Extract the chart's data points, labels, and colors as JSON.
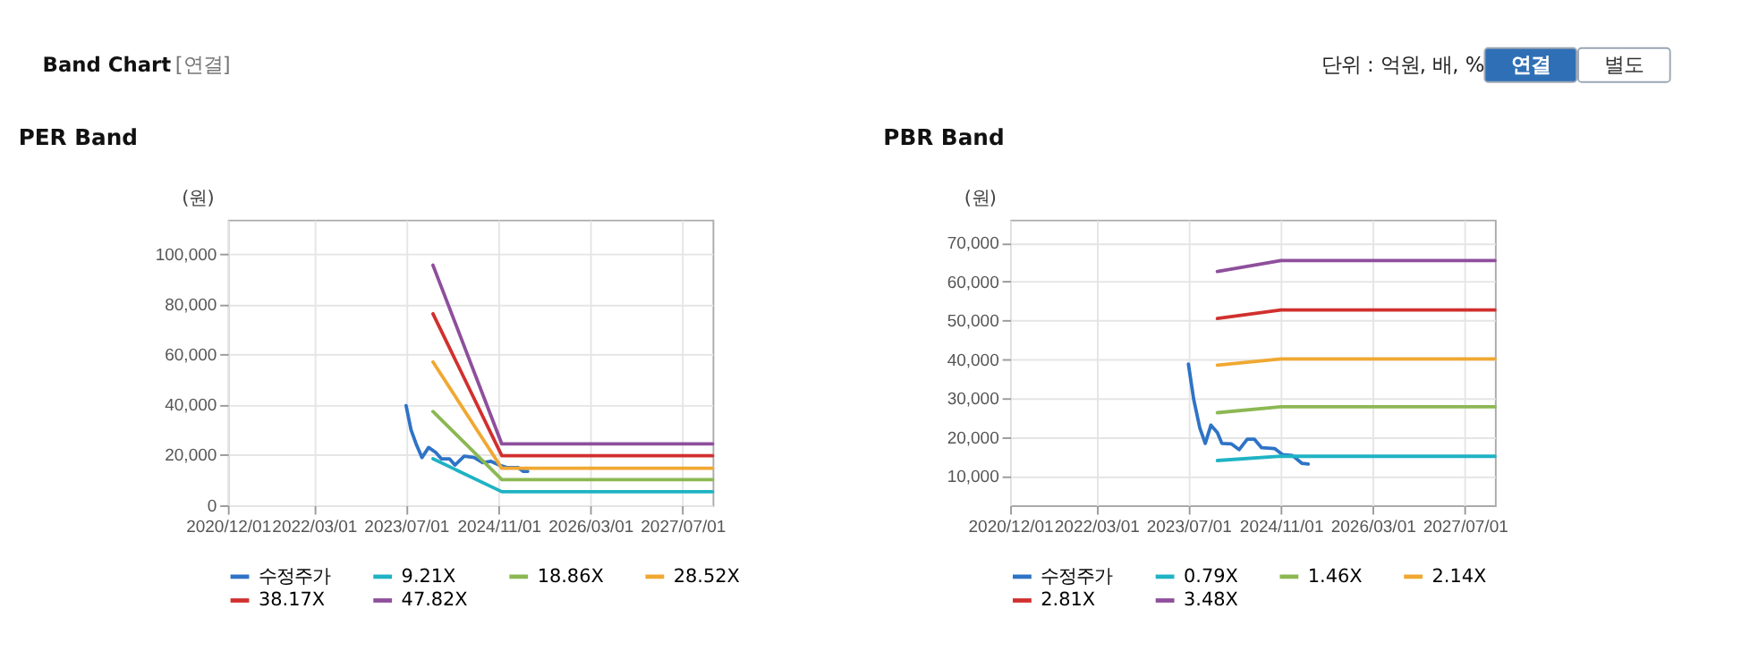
{
  "chart_data": [
    {
      "type": "line",
      "title": "PER Band",
      "ylabel": "(원)",
      "annotations": [
        "Band Chart",
        "[연결]",
        "단위 : 억원, 배, %",
        "연결",
        "별도"
      ],
      "xlim": [
        "2020-12-01",
        "2027-12-07"
      ],
      "xticks": [
        {
          "value": "2020-12-01",
          "label": "2020/12/01"
        },
        {
          "value": "2022-03-01",
          "label": "2022/03/01"
        },
        {
          "value": "2023-07-01",
          "label": "2023/07/01"
        },
        {
          "value": "2024-11-01",
          "label": "2024/11/01"
        },
        {
          "value": "2026-03-01",
          "label": "2026/03/01"
        },
        {
          "value": "2027-07-01",
          "label": "2027/07/01"
        }
      ],
      "ylim": [
        0,
        113600
      ],
      "yticks": [
        0,
        {
          "value": 20000,
          "label": "20,000"
        },
        {
          "value": 40000,
          "label": "40,000"
        },
        {
          "value": 60000,
          "label": "60,000"
        },
        {
          "value": 80000,
          "label": "80,000"
        },
        {
          "value": 100000,
          "label": "100,000"
        }
      ],
      "grid": true,
      "legend": "bottom",
      "series": [
        {
          "name": "수정주가",
          "color": "#2e73c6",
          "x": [
            "2023-07-01",
            "2023-07-27",
            "2023-08-25",
            "2023-09-23",
            "2023-10-28",
            "2023-12-05",
            "2024-01-03",
            "2024-02-15",
            "2024-03-15",
            "2024-05-03",
            "2024-06-25",
            "2024-08-07",
            "2024-09-20",
            "2024-11-03",
            "2024-12-15",
            "2025-02-12",
            "2025-03-12",
            "2025-04-04"
          ],
          "values": [
            39600,
            30000,
            24000,
            19000,
            23000,
            21000,
            18500,
            18500,
            16000,
            19500,
            19000,
            17000,
            17500,
            16000,
            15000,
            15000,
            13500,
            13500
          ]
        },
        {
          "name": "9.21X",
          "color": "#1fb3c4",
          "x": [
            "2023-11-20",
            "2024-11-18",
            "2027-12-07"
          ],
          "values": [
            18500,
            5400,
            5400
          ]
        },
        {
          "name": "18.86X",
          "color": "#8cb853",
          "x": [
            "2023-11-20",
            "2024-11-18",
            "2027-12-07"
          ],
          "values": [
            37300,
            10200,
            10200
          ]
        },
        {
          "name": "28.52X",
          "color": "#f0a832",
          "x": [
            "2023-11-20",
            "2024-11-18",
            "2027-12-07"
          ],
          "values": [
            57000,
            14700,
            14700
          ]
        },
        {
          "name": "38.17X",
          "color": "#d1302f",
          "x": [
            "2023-11-20",
            "2024-11-18",
            "2027-12-07"
          ],
          "values": [
            76200,
            19700,
            19700
          ]
        },
        {
          "name": "47.82X",
          "color": "#8e4f9c",
          "x": [
            "2023-11-20",
            "2024-11-18",
            "2027-12-07"
          ],
          "values": [
            95500,
            24400,
            24400
          ]
        }
      ]
    },
    {
      "type": "line",
      "title": "PBR Band",
      "ylabel": "(원)",
      "xlim": [
        "2020-12-01",
        "2027-12-07"
      ],
      "xticks": [
        {
          "value": "2020-12-01",
          "label": "2020/12/01"
        },
        {
          "value": "2022-03-01",
          "label": "2022/03/01"
        },
        {
          "value": "2023-07-01",
          "label": "2023/07/01"
        },
        {
          "value": "2024-11-01",
          "label": "2024/11/01"
        },
        {
          "value": "2026-03-01",
          "label": "2026/03/01"
        },
        {
          "value": "2027-07-01",
          "label": "2027/07/01"
        }
      ],
      "ylim": [
        2500,
        75900
      ],
      "yticks": [
        {
          "value": 10000,
          "label": "10,000"
        },
        {
          "value": 20000,
          "label": "20,000"
        },
        {
          "value": 30000,
          "label": "30,000"
        },
        {
          "value": 40000,
          "label": "40,000"
        },
        {
          "value": 50000,
          "label": "50,000"
        },
        {
          "value": 60000,
          "label": "60,000"
        },
        {
          "value": 70000,
          "label": "70,000"
        }
      ],
      "grid": true,
      "legend": "bottom",
      "series": [
        {
          "name": "수정주가",
          "color": "#2e73c6",
          "x": [
            "2023-07-01",
            "2023-07-29",
            "2023-08-30",
            "2023-09-28",
            "2023-10-28",
            "2023-12-01",
            "2023-12-25",
            "2024-02-12",
            "2024-03-25",
            "2024-05-07",
            "2024-06-13",
            "2024-07-22",
            "2024-09-28",
            "2024-11-10",
            "2025-01-01",
            "2025-02-19",
            "2025-03-25"
          ],
          "values": [
            38800,
            29700,
            22400,
            18400,
            23100,
            21200,
            18400,
            18300,
            16800,
            19500,
            19500,
            17300,
            17100,
            15500,
            15300,
            13300,
            13100
          ]
        },
        {
          "name": "0.79X",
          "color": "#1fb3c4",
          "x": [
            "2023-12-01",
            "2024-11-01",
            "2027-12-07"
          ],
          "values": [
            14000,
            15100,
            15100
          ]
        },
        {
          "name": "1.46X",
          "color": "#8cb853",
          "x": [
            "2023-12-01",
            "2024-11-01",
            "2027-12-07"
          ],
          "values": [
            26300,
            27800,
            27800
          ]
        },
        {
          "name": "2.14X",
          "color": "#f0a832",
          "x": [
            "2023-12-01",
            "2024-11-01",
            "2027-12-07"
          ],
          "values": [
            38500,
            40100,
            40100
          ]
        },
        {
          "name": "2.81X",
          "color": "#d1302f",
          "x": [
            "2023-12-01",
            "2024-11-01",
            "2027-12-07"
          ],
          "values": [
            50500,
            52700,
            52700
          ]
        },
        {
          "name": "3.48X",
          "color": "#8e4f9c",
          "x": [
            "2023-12-01",
            "2024-11-01",
            "2027-12-07"
          ],
          "values": [
            62600,
            65400,
            65400
          ]
        }
      ]
    }
  ]
}
